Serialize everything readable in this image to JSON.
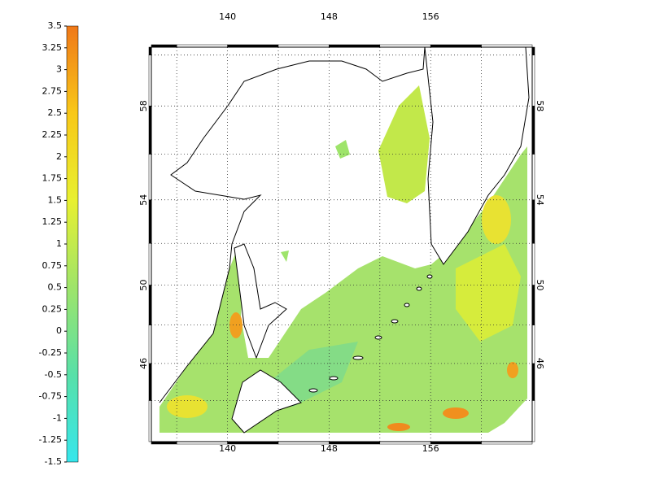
{
  "colorbar": {
    "lim": [
      -1.5,
      3.5
    ],
    "ticks": [
      3.5,
      3.25,
      3,
      2.75,
      2.5,
      2.25,
      2,
      1.75,
      1.5,
      1.25,
      1,
      0.75,
      0.5,
      0.25,
      0,
      -0.25,
      -0.5,
      -0.75,
      -1,
      -1.25,
      -1.5
    ],
    "colors": [
      "#36e6ec",
      "#58e0a8",
      "#9ee46a",
      "#e8f030",
      "#f8c818",
      "#f07818"
    ]
  },
  "map": {
    "lon_lim": [
      134,
      164
    ],
    "lat_lim": [
      41.7,
      60.3
    ],
    "lon_ticks": [
      140,
      148,
      156
    ],
    "lat_ticks": [
      58,
      54,
      50,
      46
    ],
    "lon_minor_ticks": [
      136,
      144,
      152,
      160
    ],
    "lat_minor_ticks": [
      60,
      56,
      52,
      48,
      44
    ]
  }
}
